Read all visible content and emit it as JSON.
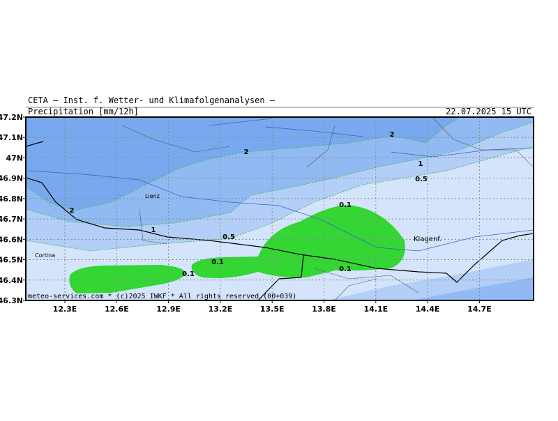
{
  "header": {
    "institute": "CETA – Inst. f. Wetter- und Klimafolgenanalysen –",
    "variable": "Precipitation [mm/12h]",
    "valid_time": "22.07.2025 15 UTC"
  },
  "axes": {
    "latitude_labels": [
      "47.2N",
      "47.1N",
      "47N",
      "46.9N",
      "46.8N",
      "46.7N",
      "46.6N",
      "46.5N",
      "46.4N",
      "46.3N"
    ],
    "longitude_labels": [
      "12.3E",
      "12.6E",
      "12.9E",
      "13.2E",
      "13.5E",
      "13.8E",
      "14.1E",
      "14.4E",
      "14.7E"
    ]
  },
  "contour_labels": [
    "2",
    "2",
    "2",
    "1",
    "0.5",
    "0.1",
    "1",
    "0.5",
    "0.1",
    "0.1",
    "0.1"
  ],
  "places": [
    "Lienz",
    "Klagenf.",
    "Cortina"
  ],
  "footer": "meteo-services.com * (c)2025 IWKF * All rights reserved (00+039)"
}
